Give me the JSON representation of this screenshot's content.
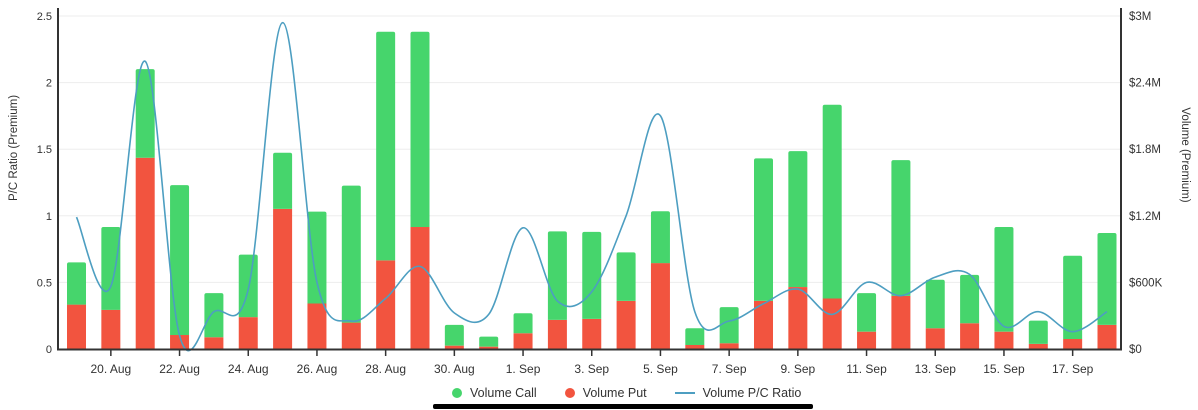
{
  "chart_data": {
    "type": "bar",
    "subtype": "stacked-column-with-line-overlay",
    "title": "",
    "categories": [
      "19. Aug",
      "20. Aug",
      "21. Aug",
      "22. Aug",
      "23. Aug",
      "24. Aug",
      "25. Aug",
      "26. Aug",
      "27. Aug",
      "28. Aug",
      "29. Aug",
      "30. Aug",
      "31. Aug",
      "1. Sep",
      "2. Sep",
      "3. Sep",
      "4. Sep",
      "5. Sep",
      "6. Sep",
      "7. Sep",
      "8. Sep",
      "9. Sep",
      "10. Sep",
      "11. Sep",
      "12. Sep",
      "13. Sep",
      "14. Sep",
      "15. Sep",
      "16. Sep",
      "17. Sep",
      "18. Sep"
    ],
    "x_ticks": {
      "start_index": 1,
      "step": 2
    },
    "series": [
      {
        "name": "Volume Put",
        "type": "bar",
        "stack_position": "bottom",
        "axis": "right",
        "color": "#f2543f",
        "values_usd": [
          400000,
          353000,
          1723000,
          126000,
          106000,
          287000,
          1262000,
          410000,
          238000,
          798000,
          1099000,
          30000,
          21000,
          142000,
          262000,
          271000,
          433000,
          774000,
          36000,
          52000,
          433000,
          558000,
          455000,
          156000,
          479000,
          187000,
          232000,
          156000,
          46000,
          90000,
          217000
        ]
      },
      {
        "name": "Volume Call",
        "type": "bar",
        "stack_position": "top",
        "axis": "right",
        "color": "#46d56c",
        "values_usd": [
          380000,
          746000,
          798000,
          1350000,
          397000,
          563000,
          506000,
          828000,
          1234000,
          2060000,
          1759000,
          187000,
          90000,
          180000,
          798000,
          784000,
          437000,
          467000,
          151000,
          325000,
          1284000,
          1225000,
          1745000,
          347000,
          1223000,
          437000,
          436000,
          943000,
          210000,
          750000,
          828000
        ]
      },
      {
        "name": "Volume P/C Ratio",
        "type": "line",
        "axis": "left",
        "color": "#4d9ec1",
        "values": [
          0.99,
          0.47,
          2.16,
          0.1,
          0.28,
          0.45,
          2.45,
          0.5,
          0.21,
          0.38,
          0.62,
          0.27,
          0.26,
          0.91,
          0.36,
          0.43,
          1.0,
          1.75,
          0.28,
          0.21,
          0.34,
          0.45,
          0.26,
          0.5,
          0.4,
          0.54,
          0.56,
          0.17,
          0.28,
          0.13,
          0.28
        ]
      }
    ],
    "axes": {
      "left": {
        "label": "P/C Ratio (Premium)",
        "min": 0,
        "max": 2.5,
        "ticks": [
          "0",
          "0.5",
          "1",
          "1.5",
          "2",
          "2.5"
        ]
      },
      "right": {
        "label": "Volume (Premium)",
        "min": 0,
        "max": 3000000,
        "ticks": [
          "$0",
          "$600K",
          "$1.2M",
          "$1.8M",
          "$2.4M",
          "$3M"
        ]
      }
    },
    "legend": {
      "position": "bottom",
      "items": [
        "Volume Call",
        "Volume Put",
        "Volume P/C Ratio"
      ]
    },
    "grid": {
      "horizontal": true,
      "vertical": false,
      "color": "#ededed"
    },
    "axis_line_color": "#333333",
    "text_color": "#333333"
  }
}
